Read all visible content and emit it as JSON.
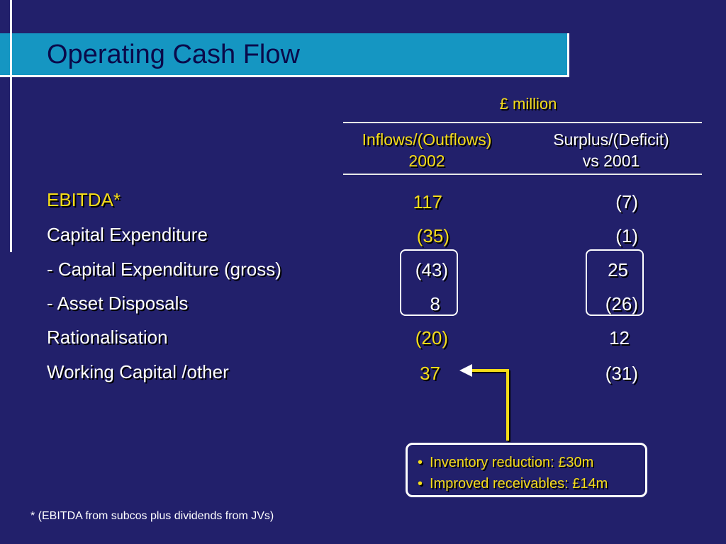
{
  "slide": {
    "title": "Operating Cash Flow",
    "unit_label": "£ million",
    "columns": [
      {
        "line1": "Inflows/(Outflows)",
        "line2": "2002"
      },
      {
        "line1": "Surplus/(Deficit)",
        "line2": "vs 2001"
      }
    ],
    "rows": [
      {
        "label": "EBITDA*",
        "inflows": "117",
        "surplus": "(7)"
      },
      {
        "label": "Capital Expenditure",
        "inflows": "(35)",
        "surplus": "(1)"
      },
      {
        "label": "- Capital Expenditure (gross)",
        "inflows": "(43)",
        "surplus": "25"
      },
      {
        "label": "- Asset Disposals",
        "inflows": "8",
        "surplus": "(26)"
      },
      {
        "label": "Rationalisation",
        "inflows": "(20)",
        "surplus": "12"
      },
      {
        "label": "Working Capital /other",
        "inflows": "37",
        "surplus": "(31)"
      }
    ],
    "callout": [
      "Inventory reduction: £30m",
      "Improved receivables: £14m"
    ],
    "footnote": "* (EBITDA from subcos plus dividends from JVs)"
  },
  "colors": {
    "background": "#22206b",
    "title_bar": "#1596c2",
    "accent_yellow": "#f5dc18",
    "text_white": "#ffffff"
  }
}
